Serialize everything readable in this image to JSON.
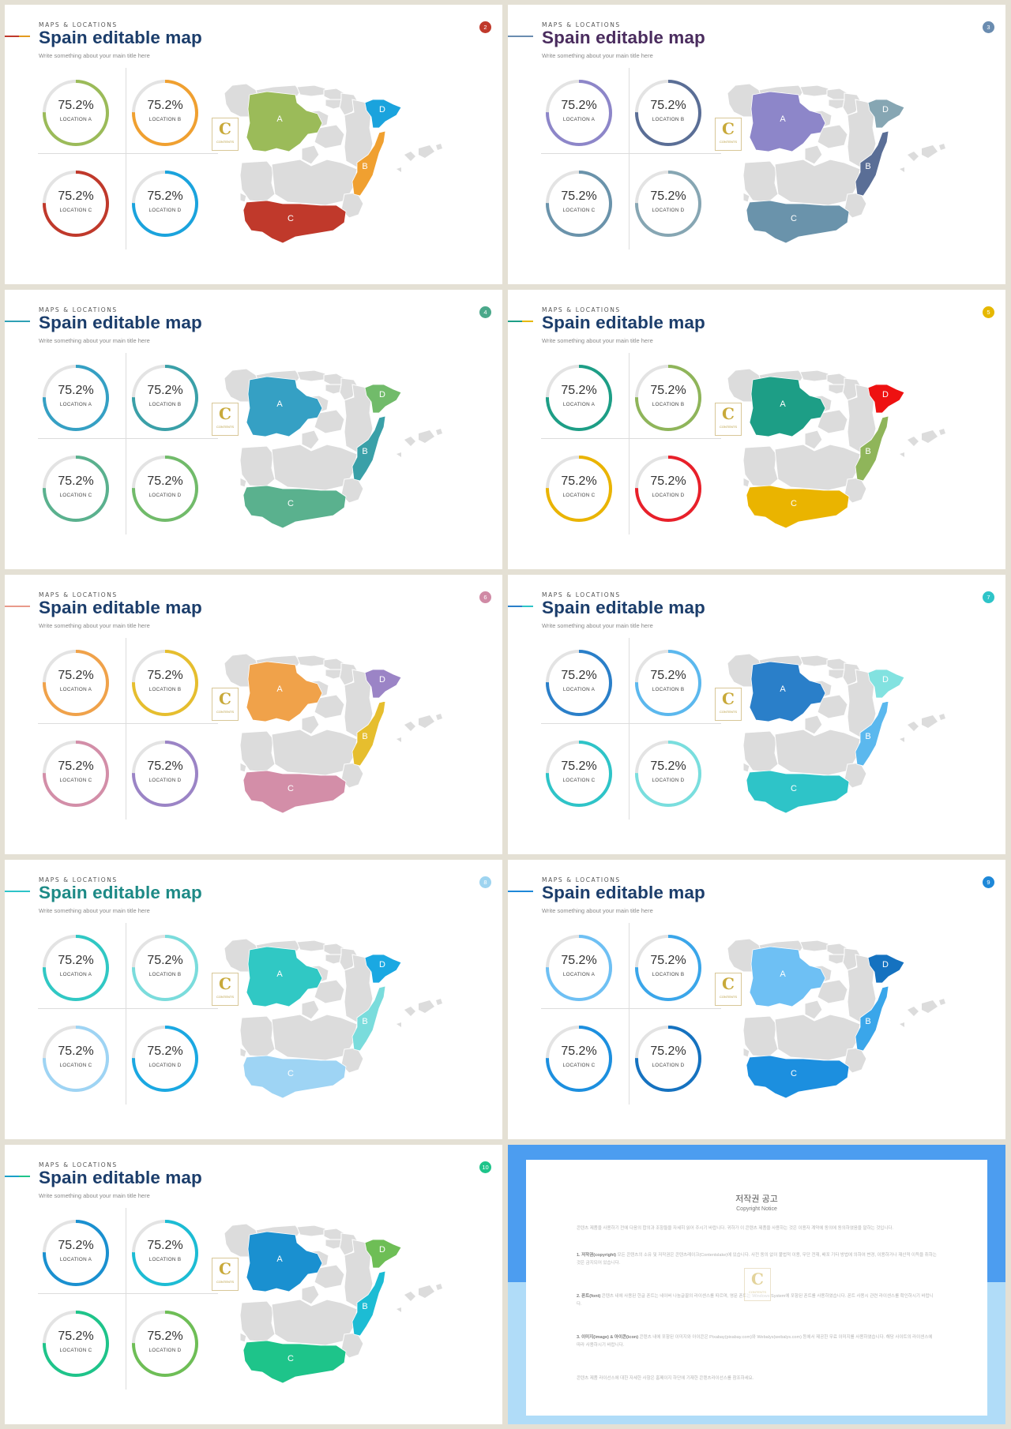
{
  "common": {
    "kicker": "MAPS & LOCATIONS",
    "title": "Spain editable map",
    "subtitle": "Write something about your main title here",
    "logo_letter": "C",
    "logo_text": "CONTENTS"
  },
  "slides": [
    {
      "page": "2",
      "title_color": "#1b3d6b",
      "page_color": "#c0392b",
      "accent": [
        "#c0392b",
        "#e39a1f"
      ],
      "rings": [
        {
          "value": "75.2%",
          "label": "LOCATION A",
          "color": "#9bbb59"
        },
        {
          "value": "75.2%",
          "label": "LOCATION B",
          "color": "#f0a030"
        },
        {
          "value": "75.2%",
          "label": "LOCATION C",
          "color": "#c0392b"
        },
        {
          "value": "75.2%",
          "label": "LOCATION D",
          "color": "#1aa3dd"
        }
      ],
      "regions": {
        "A": "#9bbb59",
        "B": "#f0a030",
        "C": "#c0392b",
        "D": "#1aa3dd"
      }
    },
    {
      "page": "3",
      "title_color": "#4a2c5e",
      "page_color": "#6a8cb0",
      "accent": [
        "#6a8cb0",
        "#6a8cb0"
      ],
      "rings": [
        {
          "value": "75.2%",
          "label": "LOCATION A",
          "color": "#8d86c9"
        },
        {
          "value": "75.2%",
          "label": "LOCATION B",
          "color": "#5a6e96"
        },
        {
          "value": "75.2%",
          "label": "LOCATION C",
          "color": "#6a93ab"
        },
        {
          "value": "75.2%",
          "label": "LOCATION D",
          "color": "#86a6b3"
        }
      ],
      "regions": {
        "A": "#8d86c9",
        "B": "#5a6e96",
        "C": "#6a93ab",
        "D": "#86a6b3"
      }
    },
    {
      "page": "4",
      "title_color": "#1b3d6b",
      "page_color": "#4aa88a",
      "accent": [
        "#2fa0b5",
        "#2fa0b5"
      ],
      "rings": [
        {
          "value": "75.2%",
          "label": "LOCATION A",
          "color": "#35a0c4"
        },
        {
          "value": "75.2%",
          "label": "LOCATION B",
          "color": "#3aa0a8"
        },
        {
          "value": "75.2%",
          "label": "LOCATION C",
          "color": "#5ab18e"
        },
        {
          "value": "75.2%",
          "label": "LOCATION D",
          "color": "#71bb6a"
        }
      ],
      "regions": {
        "A": "#35a0c4",
        "B": "#3aa0a8",
        "C": "#5ab18e",
        "D": "#71bb6a"
      }
    },
    {
      "page": "5",
      "title_color": "#1b3d6b",
      "page_color": "#e6b800",
      "accent": [
        "#1d9e86",
        "#e6b800"
      ],
      "rings": [
        {
          "value": "75.2%",
          "label": "LOCATION A",
          "color": "#1d9e86"
        },
        {
          "value": "75.2%",
          "label": "LOCATION B",
          "color": "#8fb55a"
        },
        {
          "value": "75.2%",
          "label": "LOCATION C",
          "color": "#eab400"
        },
        {
          "value": "75.2%",
          "label": "LOCATION D",
          "color": "#e8202a"
        }
      ],
      "regions": {
        "A": "#1d9e86",
        "B": "#8fb55a",
        "C": "#eab400",
        "D": "#ee1111"
      }
    },
    {
      "page": "6",
      "title_color": "#1b3d6b",
      "page_color": "#d08aa5",
      "accent": [
        "#e99a8a",
        "#e99a8a"
      ],
      "rings": [
        {
          "value": "75.2%",
          "label": "LOCATION A",
          "color": "#f0a24a"
        },
        {
          "value": "75.2%",
          "label": "LOCATION B",
          "color": "#e6be2e"
        },
        {
          "value": "75.2%",
          "label": "LOCATION C",
          "color": "#d38ea8"
        },
        {
          "value": "75.2%",
          "label": "LOCATION D",
          "color": "#9b84c6"
        }
      ],
      "regions": {
        "A": "#f0a24a",
        "B": "#e6be2e",
        "C": "#d38ea8",
        "D": "#9b84c6"
      }
    },
    {
      "page": "7",
      "title_color": "#1b3d6b",
      "page_color": "#2ec4c8",
      "accent": [
        "#2a7fc9",
        "#2ec4c8"
      ],
      "rings": [
        {
          "value": "75.2%",
          "label": "LOCATION A",
          "color": "#2a7fc9"
        },
        {
          "value": "75.2%",
          "label": "LOCATION B",
          "color": "#5bb8ee"
        },
        {
          "value": "75.2%",
          "label": "LOCATION C",
          "color": "#2ec4c8"
        },
        {
          "value": "75.2%",
          "label": "LOCATION D",
          "color": "#79dede"
        }
      ],
      "regions": {
        "A": "#2a7fc9",
        "B": "#5bb8ee",
        "C": "#2ec4c8",
        "D": "#82e2e0"
      }
    },
    {
      "page": "8",
      "title_color": "#1d8a86",
      "page_color": "#9ed4f0",
      "accent": [
        "#2ec4c8",
        "#2ec4c8"
      ],
      "rings": [
        {
          "value": "75.2%",
          "label": "LOCATION A",
          "color": "#30c8c4"
        },
        {
          "value": "75.2%",
          "label": "LOCATION B",
          "color": "#7adcdc"
        },
        {
          "value": "75.2%",
          "label": "LOCATION C",
          "color": "#9ed4f4"
        },
        {
          "value": "75.2%",
          "label": "LOCATION D",
          "color": "#1aa8e2"
        }
      ],
      "regions": {
        "A": "#30c8c4",
        "B": "#7adcdc",
        "C": "#9ed4f4",
        "D": "#1aa8e2"
      }
    },
    {
      "page": "9",
      "title_color": "#1b3d6b",
      "page_color": "#1e88d8",
      "accent": [
        "#1e88d8",
        "#1e88d8"
      ],
      "rings": [
        {
          "value": "75.2%",
          "label": "LOCATION A",
          "color": "#6ec0f4"
        },
        {
          "value": "75.2%",
          "label": "LOCATION B",
          "color": "#3aa6ea"
        },
        {
          "value": "75.2%",
          "label": "LOCATION C",
          "color": "#1c8fdf"
        },
        {
          "value": "75.2%",
          "label": "LOCATION D",
          "color": "#1572c0"
        }
      ],
      "regions": {
        "A": "#6ec0f4",
        "B": "#3aa6ea",
        "C": "#1c8fdf",
        "D": "#1572c0"
      }
    },
    {
      "page": "10",
      "title_color": "#1b3d6b",
      "page_color": "#1ec48a",
      "accent": [
        "#1aa0c8",
        "#1ec48a"
      ],
      "rings": [
        {
          "value": "75.2%",
          "label": "LOCATION A",
          "color": "#1a90d0"
        },
        {
          "value": "75.2%",
          "label": "LOCATION B",
          "color": "#1cbcd4"
        },
        {
          "value": "75.2%",
          "label": "LOCATION C",
          "color": "#1ec48a"
        },
        {
          "value": "75.2%",
          "label": "LOCATION D",
          "color": "#6ebe56"
        }
      ],
      "regions": {
        "A": "#1a90d0",
        "B": "#1cbcd4",
        "C": "#1ec48a",
        "D": "#6ebe56"
      }
    }
  ],
  "copyright": {
    "title": "저작권 공고",
    "subtitle": "Copyright Notice",
    "intro": "콘텐츠 제품을 사용하기 전에 다음의 합의과 조항들을 자세히 읽어 주시기 바랍니다. 귀하가 이 콘텐츠 제품을 사용하는 것은 이용자 계약에 동의에 동의하였음을 말하는 것입니다.",
    "p1_head": "1. 저작권(copyright)",
    "p1": " 모든 콘텐츠의 소유 및 저작권은 콘텐츠레이크(Contentslake)에 있습니다. 사전 동의 없이 불법적 이용, 무단 전재, 배포 기타 방법에 의하여 변경, 이용하거나 재산적 이득을 취하는 것은 금지되어 있습니다.",
    "p2_head": "2. 폰트(font)",
    "p2": " 콘텐츠 내에 사용된 한글 폰트는 네이버 나눔글꼴의 라이센스를 따르며, 영문 폰트는 Windows System에 포함된 폰트를 사용하였습니다. 폰트 사용시 관련 라이센스를 확인하시기 바랍니다.",
    "p3_head": "3. 이미지(image) & 아이콘(icon)",
    "p3": " 콘텐츠 내에 포함된 이미지와 아이콘은 Pixabay(pixabay.com)와 Webalys(webalys.com) 등에서 제공한 무료 이미지를 사용하였습니다. 해당 사이트의 라이센스에 따라 사용하시기 바랍니다.",
    "outro": "콘텐츠 제품 라이선스에 대한 자세한 사항은 홈페이지 하단에 기재한 콘텐츠라이선스를 참조하세요."
  }
}
